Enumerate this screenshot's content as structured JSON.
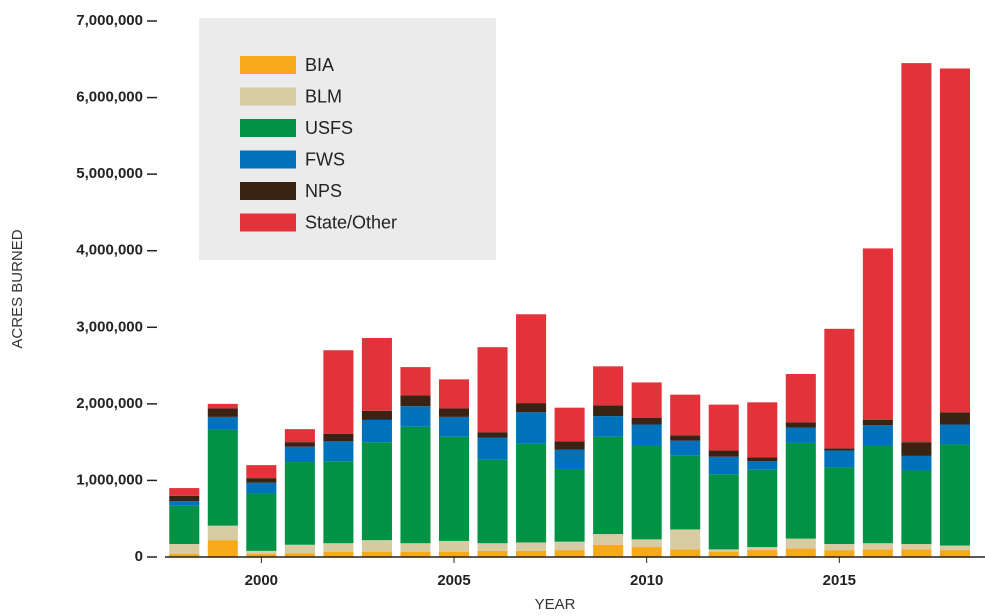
{
  "chart_data": {
    "type": "bar",
    "stacked": true,
    "x_label": "YEAR",
    "y_label": "ACRES BURNED",
    "x": [
      1998,
      1999,
      2000,
      2001,
      2002,
      2003,
      2004,
      2005,
      2006,
      2007,
      2008,
      2009,
      2010,
      2011,
      2012,
      2013,
      2014,
      2015,
      2016,
      2017,
      2018
    ],
    "series": [
      {
        "name": "BIA",
        "color": "#f7a81b",
        "values": [
          40000,
          220000,
          40000,
          50000,
          70000,
          70000,
          70000,
          70000,
          80000,
          80000,
          90000,
          160000,
          130000,
          100000,
          70000,
          90000,
          110000,
          90000,
          100000,
          100000,
          90000
        ]
      },
      {
        "name": "BLM",
        "color": "#d6cba3",
        "values": [
          130000,
          190000,
          40000,
          110000,
          110000,
          150000,
          110000,
          140000,
          100000,
          110000,
          110000,
          140000,
          100000,
          260000,
          30000,
          40000,
          130000,
          80000,
          80000,
          70000,
          60000
        ]
      },
      {
        "name": "USFS",
        "color": "#009245",
        "values": [
          500000,
          1250000,
          750000,
          1080000,
          1070000,
          1280000,
          1520000,
          1360000,
          1090000,
          1290000,
          950000,
          1270000,
          1220000,
          970000,
          980000,
          1010000,
          1250000,
          1000000,
          1270000,
          960000,
          1320000
        ]
      },
      {
        "name": "FWS",
        "color": "#0072bc",
        "values": [
          60000,
          170000,
          140000,
          200000,
          260000,
          290000,
          270000,
          260000,
          290000,
          410000,
          250000,
          270000,
          280000,
          190000,
          230000,
          110000,
          200000,
          220000,
          270000,
          190000,
          260000
        ]
      },
      {
        "name": "NPS",
        "color": "#3b2314",
        "values": [
          70000,
          110000,
          60000,
          60000,
          100000,
          120000,
          140000,
          110000,
          70000,
          120000,
          110000,
          140000,
          90000,
          70000,
          80000,
          50000,
          70000,
          30000,
          70000,
          180000,
          160000
        ]
      },
      {
        "name": "State/Other",
        "color": "#e2323a",
        "values": [
          100000,
          60000,
          170000,
          170000,
          1090000,
          950000,
          370000,
          380000,
          1110000,
          1160000,
          440000,
          510000,
          460000,
          530000,
          600000,
          720000,
          630000,
          1560000,
          2240000,
          4950000,
          4490000
        ]
      }
    ],
    "xlim": [
      1997.5,
      2018.78
    ],
    "xticks": [
      2000,
      2005,
      2010,
      2015
    ],
    "ylim": [
      0,
      7000000
    ],
    "yticks": [
      0,
      {
        "value": 1000000,
        "label": "1,000,000"
      },
      {
        "value": 2000000,
        "label": "2,000,000"
      },
      {
        "value": 3000000,
        "label": "3,000,000"
      },
      {
        "value": 4000000,
        "label": "4,000,000"
      },
      {
        "value": 5000000,
        "label": "5,000,000"
      },
      {
        "value": 6000000,
        "label": "6,000,000"
      },
      {
        "value": 7000000,
        "label": "7,000,000"
      }
    ],
    "legend": "upper left"
  }
}
